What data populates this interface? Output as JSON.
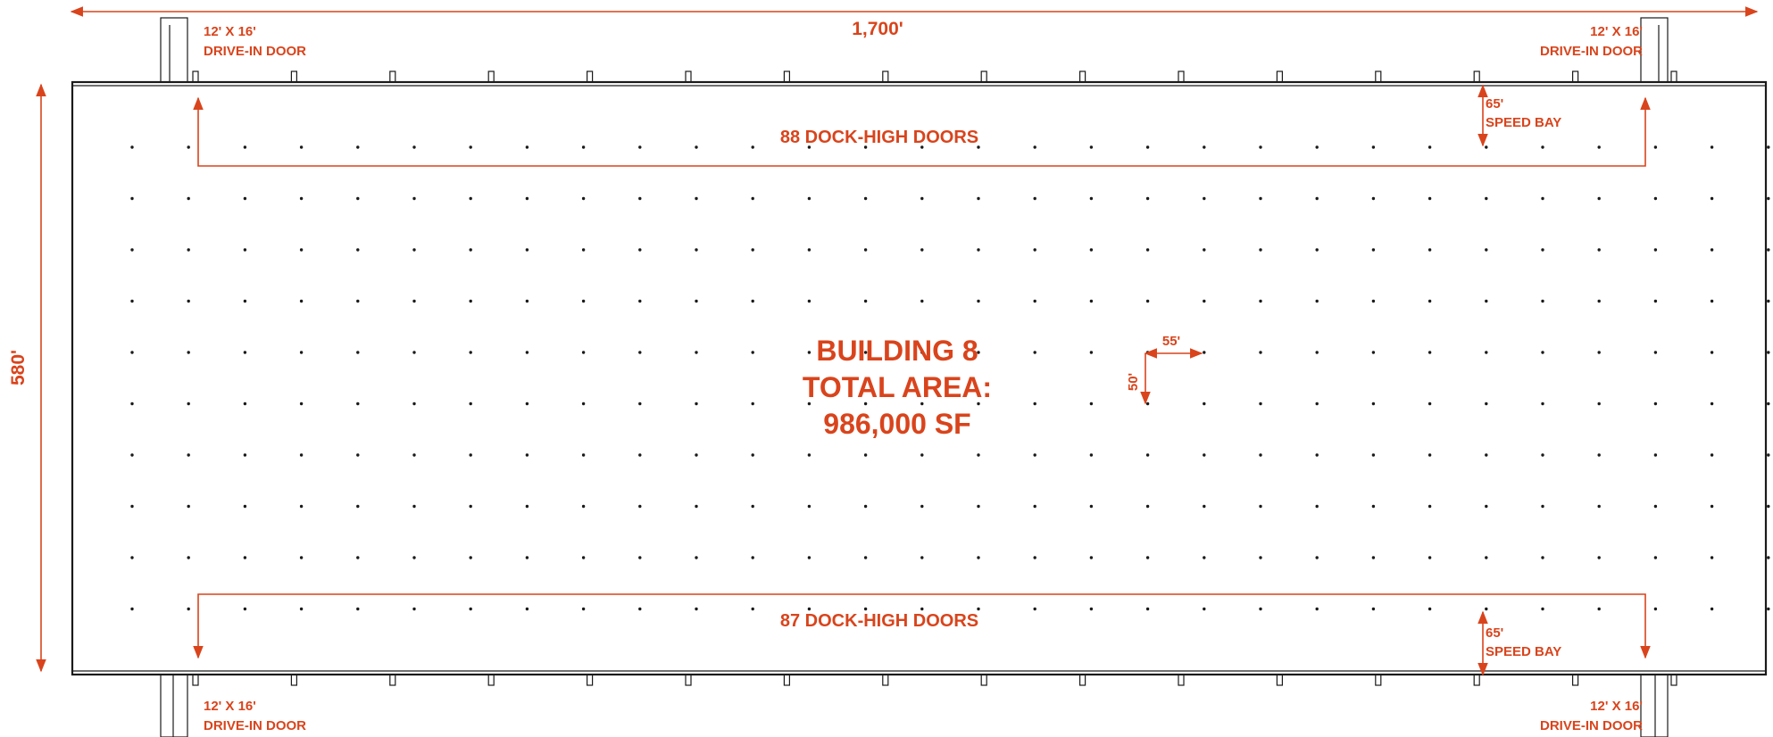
{
  "dimensions": {
    "width_label": "1,700'",
    "height_label": "580'",
    "column_spacing_x": "55'",
    "column_spacing_y": "50'",
    "speed_bay_depth": "65'",
    "speed_bay_label": "SPEED BAY"
  },
  "doors": {
    "drive_in_size": "12' X 16'",
    "drive_in_label": "DRIVE-IN DOOR",
    "north_dock_label": "88 DOCK-HIGH DOORS",
    "south_dock_label": "87 DOCK-HIGH DOORS"
  },
  "building": {
    "name": "BUILDING 8",
    "area_label": "TOTAL AREA:",
    "area_value": "986,000 SF"
  },
  "colors": {
    "accent": "#d9441c",
    "line": "#1a1a1a"
  }
}
